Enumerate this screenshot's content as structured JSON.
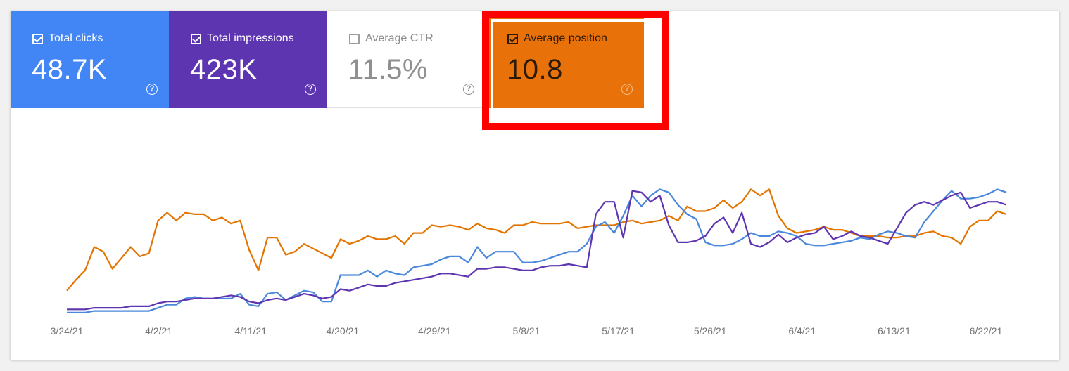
{
  "tiles": {
    "clicks": {
      "label": "Total clicks",
      "value": "48.7K",
      "checked": true,
      "color": "#4285f4"
    },
    "impressions": {
      "label": "Total impressions",
      "value": "423K",
      "checked": true,
      "color": "#5e35b1"
    },
    "ctr": {
      "label": "Average CTR",
      "value": "11.5%",
      "checked": false,
      "color": "#ffffff"
    },
    "position": {
      "label": "Average position",
      "value": "10.8",
      "checked": true,
      "color": "#e8710a"
    }
  },
  "highlight_color": "#ff0000",
  "chart_data": {
    "type": "line",
    "xlabel": "",
    "ylabel": "",
    "x_ticks": [
      "3/24/21",
      "4/2/21",
      "4/11/21",
      "4/20/21",
      "4/29/21",
      "5/8/21",
      "5/17/21",
      "5/26/21",
      "6/4/21",
      "6/13/21",
      "6/22/21"
    ],
    "x_start": "3/24/21",
    "x_end": "6/24/21",
    "ylim": [
      0,
      100
    ],
    "grid": false,
    "axes_visible": false,
    "series": [
      {
        "color": "#e37400",
        "values": [
          15,
          22,
          28,
          43,
          40,
          29,
          36,
          43,
          37,
          39,
          60,
          65,
          60,
          65,
          64,
          64,
          60,
          62,
          58,
          60,
          41,
          28,
          49,
          49,
          38,
          40,
          45,
          42,
          39,
          36,
          48,
          45,
          47,
          50,
          48,
          48,
          50,
          45,
          52,
          52,
          57,
          56,
          57,
          56,
          54,
          58,
          55,
          54,
          52,
          57,
          57,
          59,
          58,
          58,
          58,
          59,
          55,
          56,
          57,
          57,
          57,
          59,
          60,
          58,
          59,
          60,
          63,
          60,
          69,
          66,
          66,
          68,
          73,
          68,
          72,
          80,
          76,
          80,
          63,
          55,
          52,
          53,
          54,
          56,
          54,
          54,
          52,
          50,
          50,
          50,
          49,
          49,
          50,
          50,
          52,
          53,
          50,
          49,
          45,
          56,
          60,
          60,
          66,
          64
        ]
      },
      {
        "color": "#4a88db",
        "values": [
          1,
          1,
          1,
          2,
          2,
          2,
          2,
          2,
          2,
          2,
          4,
          6,
          6,
          10,
          11,
          10,
          10,
          10,
          10,
          13,
          6,
          5,
          13,
          14,
          9,
          12,
          15,
          14,
          8,
          8,
          25,
          25,
          25,
          28,
          24,
          28,
          26,
          25,
          30,
          31,
          32,
          35,
          37,
          37,
          33,
          43,
          36,
          40,
          40,
          40,
          33,
          33,
          34,
          36,
          38,
          40,
          40,
          45,
          56,
          59,
          52,
          63,
          76,
          69,
          76,
          80,
          78,
          70,
          64,
          61,
          46,
          44,
          44,
          45,
          48,
          52,
          50,
          50,
          53,
          52,
          50,
          45,
          44,
          44,
          45,
          46,
          47,
          49,
          48,
          51,
          53,
          52,
          50,
          49,
          59,
          66,
          73,
          79,
          74,
          74,
          75,
          77,
          80,
          78
        ]
      },
      {
        "color": "#5e35b1",
        "values": [
          3,
          3,
          3,
          4,
          4,
          4,
          4,
          5,
          5,
          5,
          7,
          8,
          8,
          9,
          10,
          10,
          10,
          11,
          12,
          11,
          8,
          7,
          9,
          10,
          9,
          11,
          13,
          12,
          10,
          11,
          16,
          15,
          17,
          19,
          18,
          18,
          20,
          21,
          22,
          23,
          24,
          26,
          26,
          25,
          24,
          29,
          29,
          30,
          30,
          29,
          28,
          28,
          30,
          31,
          31,
          32,
          31,
          30,
          64,
          72,
          72,
          49,
          79,
          78,
          72,
          76,
          57,
          46,
          46,
          47,
          50,
          58,
          62,
          52,
          65,
          45,
          43,
          46,
          51,
          46,
          49,
          51,
          52,
          56,
          48,
          50,
          53,
          50,
          49,
          47,
          45,
          55,
          65,
          70,
          72,
          70,
          73,
          76,
          78,
          68,
          70,
          72,
          72,
          70
        ]
      }
    ]
  }
}
